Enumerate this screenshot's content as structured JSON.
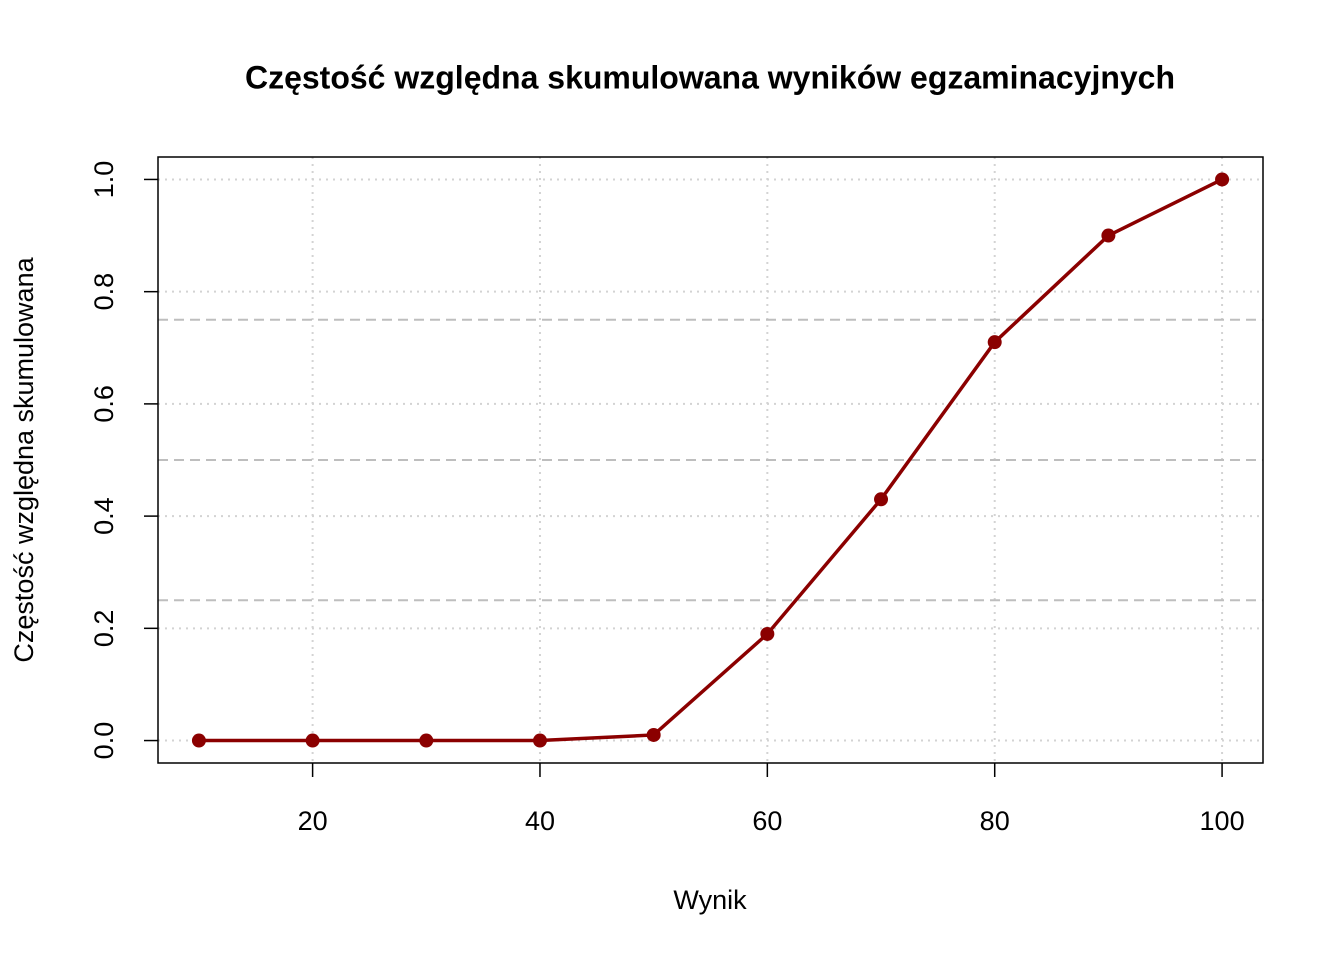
{
  "chart_data": {
    "type": "line",
    "title": "Częstość względna skumulowana wyników egzaminacyjnych",
    "x_label": "Wynik",
    "y_label": "Częstość względna skumulowana",
    "x": [
      10,
      20,
      30,
      40,
      50,
      60,
      70,
      80,
      90,
      100
    ],
    "values": [
      0,
      0,
      0,
      0,
      0.01,
      0.19,
      0.43,
      0.71,
      0.9,
      1.0
    ],
    "color": "#8b0000",
    "xlim": [
      6.4,
      103.6
    ],
    "ylim": [
      -0.04,
      1.04
    ],
    "xticks": [
      20,
      40,
      60,
      80,
      100
    ],
    "yticks": [
      {
        "value": 0,
        "label": "0.0"
      },
      0.2,
      0.4,
      0.6,
      0.8,
      {
        "value": 1,
        "label": "1.0"
      }
    ],
    "grid": true,
    "hlines": [
      0.25,
      0.5,
      0.75
    ]
  }
}
